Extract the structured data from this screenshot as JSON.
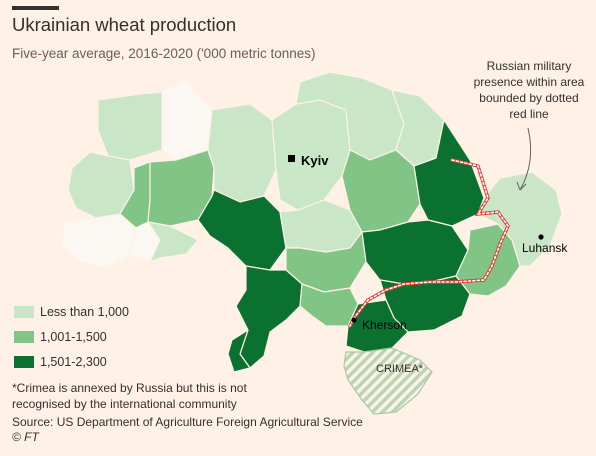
{
  "title": "Ukrainian wheat production",
  "subtitle": "Five-year average, 2016-2020 ('000 metric tonnes)",
  "colors": {
    "background": "#fff1e5",
    "no_data": "#fbf7f2",
    "low": "#c9e6c7",
    "mid": "#80c586",
    "high": "#0a7131",
    "crimea_stripe": "#b7d6b4",
    "military_line": "#e03c31"
  },
  "legend": [
    {
      "label": "Less than 1,000",
      "color": "#c9e6c7"
    },
    {
      "label": "1,001-1,500",
      "color": "#80c586"
    },
    {
      "label": "1,501-2,300",
      "color": "#0a7131"
    }
  ],
  "cities": {
    "kyiv": "Kyiv",
    "kherson": "Kherson",
    "luhansk": "Luhansk"
  },
  "crimea_label": "CRIMEA*",
  "annotation": "Russian military presence within area bounded by dotted red line",
  "footnote_line1": "*Crimea is annexed by Russia but this is not",
  "footnote_line2": "recognised by the international community",
  "source": "Source: US Department of Agriculture Foreign Agricultural Service",
  "credit": "© FT"
}
